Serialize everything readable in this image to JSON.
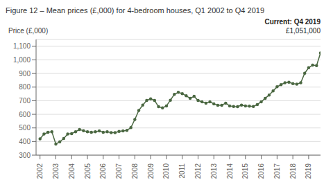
{
  "chart_data": {
    "type": "line",
    "title": "Figure 12 – Mean prices (£,000) for 4-bedroom houses, Q1 2002 to Q4 2019",
    "ylabel": "Price (£,000)",
    "annotations": [
      "Current: Q4 2019",
      "£1,051,000"
    ],
    "color": "#4a6741",
    "marker": "circle",
    "grid": true,
    "xlim": [
      2001.75,
      2019.75
    ],
    "xticks": [
      2002,
      2003,
      2004,
      2005,
      2006,
      2007,
      2008,
      2009,
      2010,
      2011,
      2012,
      2013,
      2014,
      2015,
      2016,
      2017,
      2018,
      2019
    ],
    "ylim": [
      300,
      1150
    ],
    "yticks": [
      300,
      400,
      500,
      600,
      700,
      800,
      900,
      {
        "value": 1000,
        "label": "1,000"
      },
      {
        "value": 1100,
        "label": "1,100"
      }
    ],
    "x": [
      2002,
      2002.25,
      2002.5,
      2002.75,
      2003,
      2003.25,
      2003.5,
      2003.75,
      2004,
      2004.25,
      2004.5,
      2004.75,
      2005,
      2005.25,
      2005.5,
      2005.75,
      2006,
      2006.25,
      2006.5,
      2006.75,
      2007,
      2007.25,
      2007.5,
      2007.75,
      2008,
      2008.25,
      2008.5,
      2008.75,
      2009,
      2009.25,
      2009.5,
      2009.75,
      2010,
      2010.25,
      2010.5,
      2010.75,
      2011,
      2011.25,
      2011.5,
      2011.75,
      2012,
      2012.25,
      2012.5,
      2012.75,
      2013,
      2013.25,
      2013.5,
      2013.75,
      2014,
      2014.25,
      2014.5,
      2014.75,
      2015,
      2015.25,
      2015.5,
      2015.75,
      2016,
      2016.25,
      2016.5,
      2016.75,
      2017,
      2017.25,
      2017.5,
      2017.75,
      2018,
      2018.25,
      2018.5,
      2018.75,
      2019,
      2019.25,
      2019.5,
      2019.75
    ],
    "values": [
      420,
      455,
      468,
      472,
      382,
      398,
      422,
      455,
      458,
      472,
      488,
      480,
      472,
      468,
      472,
      478,
      468,
      472,
      466,
      466,
      474,
      478,
      482,
      502,
      562,
      628,
      668,
      702,
      714,
      702,
      656,
      648,
      662,
      704,
      746,
      762,
      752,
      736,
      718,
      732,
      702,
      692,
      682,
      692,
      677,
      667,
      667,
      682,
      662,
      658,
      656,
      668,
      662,
      660,
      658,
      672,
      692,
      718,
      742,
      772,
      802,
      818,
      832,
      836,
      826,
      822,
      832,
      902,
      942,
      962,
      958,
      1051
    ]
  }
}
